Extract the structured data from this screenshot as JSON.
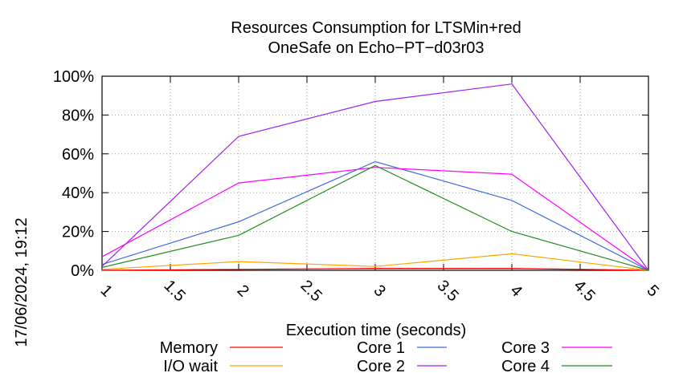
{
  "chart_data": {
    "type": "line",
    "title": [
      "Resources Consumption for LTSMin+red",
      "OneSafe on Echo−PT−d03r03"
    ],
    "xlabel": "Execution time (seconds)",
    "ylabel": "",
    "side_label": "17/06/2024, 19:12",
    "xlim": [
      1,
      5
    ],
    "ylim": [
      0,
      100
    ],
    "x_ticks": [
      1,
      1.5,
      2,
      2.5,
      3,
      3.5,
      4,
      4.5,
      5
    ],
    "x_tick_labels": [
      "1",
      "1.5",
      "2",
      "2.5",
      "3",
      "3.5",
      "4",
      "4.5",
      "5"
    ],
    "y_ticks": [
      0,
      20,
      40,
      60,
      80,
      100
    ],
    "y_tick_labels": [
      "0%",
      "20%",
      "40%",
      "60%",
      "80%",
      "100%"
    ],
    "grid": true,
    "legend_position": "bottom",
    "series": [
      {
        "name": "Memory",
        "color": "#ff0000",
        "x": [
          1,
          2,
          3,
          4,
          5
        ],
        "y": [
          0,
          0.5,
          1,
          1,
          0
        ]
      },
      {
        "name": "I/O wait",
        "color": "#ffa500",
        "x": [
          1,
          2,
          3,
          4,
          5
        ],
        "y": [
          0.5,
          4.5,
          2,
          8.5,
          0
        ]
      },
      {
        "name": "Core 1",
        "color": "#4169e1",
        "x": [
          1,
          2,
          3,
          4,
          5
        ],
        "y": [
          3,
          25,
          56,
          36,
          0
        ]
      },
      {
        "name": "Core 2",
        "color": "#a020f0",
        "x": [
          1,
          2,
          3,
          4,
          5
        ],
        "y": [
          2,
          69,
          87,
          96,
          0
        ]
      },
      {
        "name": "Core 3",
        "color": "#ff00ff",
        "x": [
          1,
          2,
          3,
          4,
          5
        ],
        "y": [
          7,
          45,
          53,
          49.5,
          0
        ]
      },
      {
        "name": "Core 4",
        "color": "#228b22",
        "x": [
          1,
          2,
          3,
          4,
          5
        ],
        "y": [
          1.5,
          18,
          54,
          20,
          0
        ]
      }
    ]
  }
}
